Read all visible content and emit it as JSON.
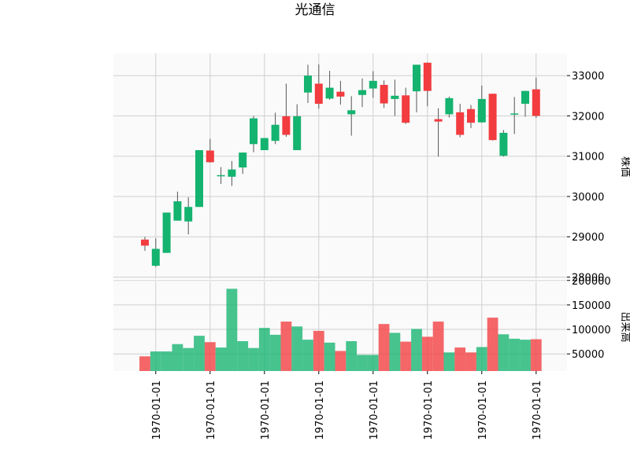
{
  "chart_data": {
    "type": "candlestick",
    "title": "光通信",
    "price_panel": {
      "ylabel": "株価",
      "yticks": [
        28000,
        29000,
        30000,
        31000,
        32000,
        33000
      ],
      "ylim": [
        27950,
        33550
      ]
    },
    "volume_panel": {
      "ylabel": "出来高",
      "yticks": [
        50000,
        100000,
        150000,
        200000
      ],
      "ylim": [
        15000,
        198000
      ]
    },
    "x_tick_labels": [
      "1970-01-01",
      "1970-01-01",
      "1970-01-01",
      "1970-01-01",
      "1970-01-01",
      "1970-01-01",
      "1970-01-01",
      "1970-01-01"
    ],
    "x_tick_candle_index": [
      1,
      6,
      11,
      16,
      21,
      26,
      31,
      36
    ],
    "up_color": "#14b36f",
    "down_color": "#f23c3f",
    "grid": true,
    "candles": [
      {
        "o": 28930,
        "h": 29000,
        "l": 28650,
        "c": 28780,
        "v": 45000
      },
      {
        "o": 28280,
        "h": 28960,
        "l": 28250,
        "c": 28700,
        "v": 55000
      },
      {
        "o": 28600,
        "h": 29600,
        "l": 28600,
        "c": 29600,
        "v": 55000
      },
      {
        "o": 29400,
        "h": 30120,
        "l": 29400,
        "c": 29880,
        "v": 70000
      },
      {
        "o": 29380,
        "h": 29980,
        "l": 29060,
        "c": 29740,
        "v": 62000
      },
      {
        "o": 29740,
        "h": 31150,
        "l": 29740,
        "c": 31150,
        "v": 87000
      },
      {
        "o": 31140,
        "h": 31430,
        "l": 30840,
        "c": 30850,
        "v": 74000
      },
      {
        "o": 30500,
        "h": 30730,
        "l": 30310,
        "c": 30530,
        "v": 63000
      },
      {
        "o": 30490,
        "h": 30880,
        "l": 30260,
        "c": 30670,
        "v": 183000
      },
      {
        "o": 30720,
        "h": 31090,
        "l": 30560,
        "c": 31090,
        "v": 76000
      },
      {
        "o": 31300,
        "h": 32000,
        "l": 31100,
        "c": 31940,
        "v": 62000
      },
      {
        "o": 31150,
        "h": 31450,
        "l": 31150,
        "c": 31450,
        "v": 103000
      },
      {
        "o": 31380,
        "h": 32080,
        "l": 31300,
        "c": 31780,
        "v": 89000
      },
      {
        "o": 31990,
        "h": 32800,
        "l": 31480,
        "c": 31530,
        "v": 116000
      },
      {
        "o": 31150,
        "h": 32290,
        "l": 31150,
        "c": 31990,
        "v": 106000
      },
      {
        "o": 32580,
        "h": 33270,
        "l": 32320,
        "c": 33000,
        "v": 79000
      },
      {
        "o": 32800,
        "h": 33280,
        "l": 32180,
        "c": 32300,
        "v": 97000
      },
      {
        "o": 32430,
        "h": 33120,
        "l": 32400,
        "c": 32700,
        "v": 73000
      },
      {
        "o": 32600,
        "h": 32870,
        "l": 32280,
        "c": 32480,
        "v": 56000
      },
      {
        "o": 32040,
        "h": 32490,
        "l": 31510,
        "c": 32140,
        "v": 76000
      },
      {
        "o": 32520,
        "h": 32930,
        "l": 32220,
        "c": 32640,
        "v": 48000
      },
      {
        "o": 32680,
        "h": 33110,
        "l": 32450,
        "c": 32870,
        "v": 48000
      },
      {
        "o": 32770,
        "h": 32880,
        "l": 32200,
        "c": 32310,
        "v": 111000
      },
      {
        "o": 32420,
        "h": 32900,
        "l": 32000,
        "c": 32500,
        "v": 93000
      },
      {
        "o": 32510,
        "h": 32700,
        "l": 31800,
        "c": 31830,
        "v": 75000
      },
      {
        "o": 32610,
        "h": 33270,
        "l": 32090,
        "c": 33270,
        "v": 101000
      },
      {
        "o": 33320,
        "h": 33330,
        "l": 32240,
        "c": 32620,
        "v": 85000
      },
      {
        "o": 31920,
        "h": 32190,
        "l": 30990,
        "c": 31860,
        "v": 116000
      },
      {
        "o": 32040,
        "h": 32480,
        "l": 31960,
        "c": 32440,
        "v": 53000
      },
      {
        "o": 32090,
        "h": 32300,
        "l": 31470,
        "c": 31530,
        "v": 63000
      },
      {
        "o": 32170,
        "h": 32270,
        "l": 31700,
        "c": 31830,
        "v": 53000
      },
      {
        "o": 31840,
        "h": 32750,
        "l": 31830,
        "c": 32420,
        "v": 64000
      },
      {
        "o": 32550,
        "h": 32550,
        "l": 31390,
        "c": 31400,
        "v": 124000
      },
      {
        "o": 31010,
        "h": 31650,
        "l": 30990,
        "c": 31580,
        "v": 90000
      },
      {
        "o": 32060,
        "h": 32470,
        "l": 31550,
        "c": 32060,
        "v": 81000
      },
      {
        "o": 32300,
        "h": 32620,
        "l": 31980,
        "c": 32620,
        "v": 79000
      },
      {
        "o": 32660,
        "h": 32950,
        "l": 31950,
        "c": 32000,
        "v": 80000
      }
    ]
  }
}
